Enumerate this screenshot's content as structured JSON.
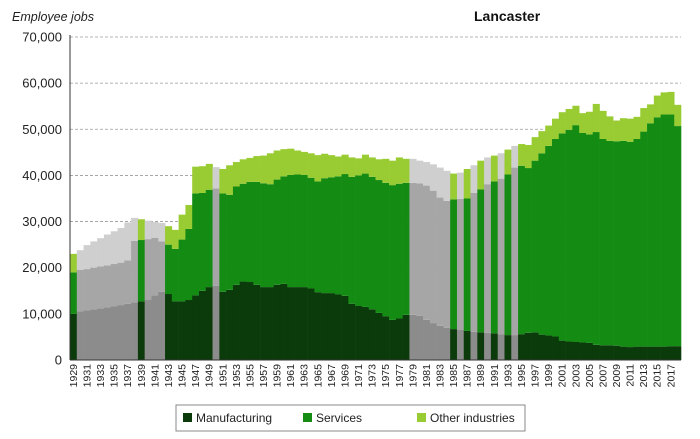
{
  "chart_data": {
    "type": "area",
    "title": "Lancaster",
    "ylabel": "Employee jobs",
    "xlabel": "",
    "ylim": [
      0,
      70000
    ],
    "yticks": [
      "0",
      "10,000",
      "20,000",
      "30,000",
      "40,000",
      "50,000",
      "60,000",
      "70,000"
    ],
    "ytick_values": [
      0,
      10000,
      20000,
      30000,
      40000,
      50000,
      60000,
      70000
    ],
    "grid": "horizontal dashed",
    "legend_position": "bottom",
    "x_start": 1929,
    "x_end": 2018,
    "x_tick_labels": [
      "1929",
      "1931",
      "1933",
      "1935",
      "1937",
      "1939",
      "1941",
      "1943",
      "1945",
      "1947",
      "1949",
      "1951",
      "1953",
      "1955",
      "1957",
      "1959",
      "1961",
      "1963",
      "1965",
      "1967",
      "1969",
      "1971",
      "1973",
      "1975",
      "1977",
      "1979",
      "1981",
      "1983",
      "1985",
      "1987",
      "1989",
      "1991",
      "1993",
      "1995",
      "1997",
      "1999",
      "2001",
      "2003",
      "2005",
      "2007",
      "2009",
      "2011",
      "2013",
      "2015",
      "2017"
    ],
    "estimated_years": [
      1930,
      1931,
      1932,
      1933,
      1934,
      1935,
      1936,
      1937,
      1938,
      1940,
      1941,
      1942,
      1950,
      1979,
      1980,
      1981,
      1982,
      1983,
      1984,
      1986,
      1988,
      1990,
      1992,
      1994
    ],
    "series": [
      {
        "name": "Manufacturing",
        "color": "#0b3b0b",
        "estimated_color": "#8c8c8c",
        "values": [
          10000,
          10500,
          10800,
          11000,
          11200,
          11400,
          11600,
          11900,
          12200,
          12500,
          12700,
          13000,
          14000,
          14800,
          14300,
          12700,
          12700,
          13000,
          14000,
          15000,
          15800,
          16100,
          14800,
          15200,
          16300,
          17000,
          16900,
          16300,
          15800,
          15800,
          16300,
          16500,
          15800,
          15800,
          15800,
          15500,
          14700,
          14500,
          14500,
          14200,
          13900,
          12200,
          11700,
          11500,
          11000,
          10200,
          9500,
          8700,
          9000,
          9800,
          9800,
          9600,
          8700,
          8000,
          7400,
          7000,
          6700,
          6500,
          6300,
          6100,
          6000,
          5900,
          5800,
          5600,
          5400,
          5400,
          5600,
          5900,
          6000,
          5500,
          5300,
          5100,
          4200,
          4000,
          3900,
          3800,
          3700,
          3300,
          3200,
          3200,
          3100,
          2900,
          2800,
          2900,
          2900,
          2900,
          2900,
          2900,
          3000,
          3000
        ],
        "totals": [
          19000,
          19500,
          19700,
          20000,
          20300,
          20500,
          20800,
          21100,
          21600,
          25800,
          26000,
          26200,
          26500,
          25700,
          25000,
          24100,
          26100,
          28400,
          36100,
          36200,
          36900,
          37200,
          36100,
          35800,
          37600,
          38200,
          38600,
          38600,
          38300,
          38100,
          39100,
          39800,
          40100,
          40200,
          40100,
          39500,
          38700,
          39400,
          39600,
          39800,
          40300,
          39700,
          40000,
          40400,
          39700,
          39000,
          38400,
          37900,
          38200,
          38400,
          38400,
          38300,
          37800,
          36700,
          35200,
          34500,
          34800,
          34900,
          35000,
          36200,
          37000,
          38100,
          38700,
          39300,
          40200,
          41700,
          42100,
          41600,
          43200,
          44800,
          46400,
          47900,
          49100,
          49900,
          50900,
          49200,
          48900,
          49400,
          47900,
          47500,
          47400,
          47500,
          47300,
          47900,
          49500,
          51300,
          52600,
          53200,
          53200,
          50700
        ],
        "totals_other": [
          23000,
          23800,
          24900,
          25700,
          26400,
          27200,
          27900,
          28600,
          29800,
          30800,
          30500,
          30200,
          29900,
          29700,
          29000,
          28200,
          31500,
          33600,
          41900,
          42000,
          42500,
          41800,
          41400,
          42200,
          42900,
          43500,
          43800,
          44200,
          44300,
          44800,
          45400,
          45700,
          45800,
          45400,
          45100,
          44800,
          44400,
          44700,
          44400,
          44100,
          44500,
          43900,
          43700,
          44500,
          43900,
          43500,
          43600,
          43200,
          43900,
          43600,
          43600,
          43200,
          42900,
          42400,
          41700,
          41000,
          40400,
          40600,
          41400,
          42200,
          43200,
          43900,
          44300,
          44800,
          45600,
          46400,
          46800,
          46600,
          48300,
          49600,
          50800,
          52300,
          53700,
          54400,
          55100,
          53500,
          53800,
          55500,
          54000,
          52800,
          51900,
          52400,
          52300,
          52700,
          54600,
          55400,
          57300,
          58000,
          58100,
          55300
        ],
        "totals_other_note": "cumulative top of Other industries"
      },
      {
        "name": "Services",
        "color": "#148c14",
        "estimated_color": "#a6a6a6"
      },
      {
        "name": "Other industries",
        "color": "#99cc33",
        "estimated_color": "#cfcfcf"
      }
    ]
  }
}
